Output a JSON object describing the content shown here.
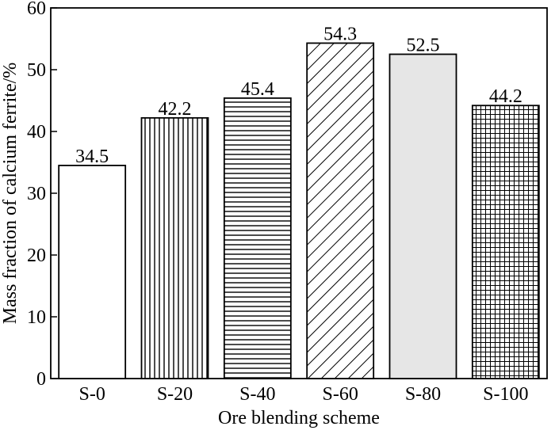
{
  "chart_data": {
    "type": "bar",
    "categories": [
      "S-0",
      "S-20",
      "S-40",
      "S-60",
      "S-80",
      "S-100"
    ],
    "values": [
      34.5,
      42.2,
      45.4,
      54.3,
      52.5,
      44.2
    ],
    "value_labels": [
      "34.5",
      "42.2",
      "45.4",
      "54.3",
      "52.5",
      "44.2"
    ],
    "patterns": [
      "none",
      "vertical",
      "horizontal",
      "diagonal",
      "solid-gray",
      "grid"
    ],
    "xlabel": "Ore blending scheme",
    "ylabel": "Mass fraction of calcium ferrite/%",
    "ylim": [
      0,
      60
    ],
    "yticks": [
      0,
      10,
      20,
      30,
      40,
      50,
      60
    ],
    "grid": false,
    "colors": {
      "bar_fill": "#ffffff",
      "bar_stroke": "#000000",
      "solid_gray": "#e6e6e6",
      "pattern_line": "#000000"
    }
  }
}
